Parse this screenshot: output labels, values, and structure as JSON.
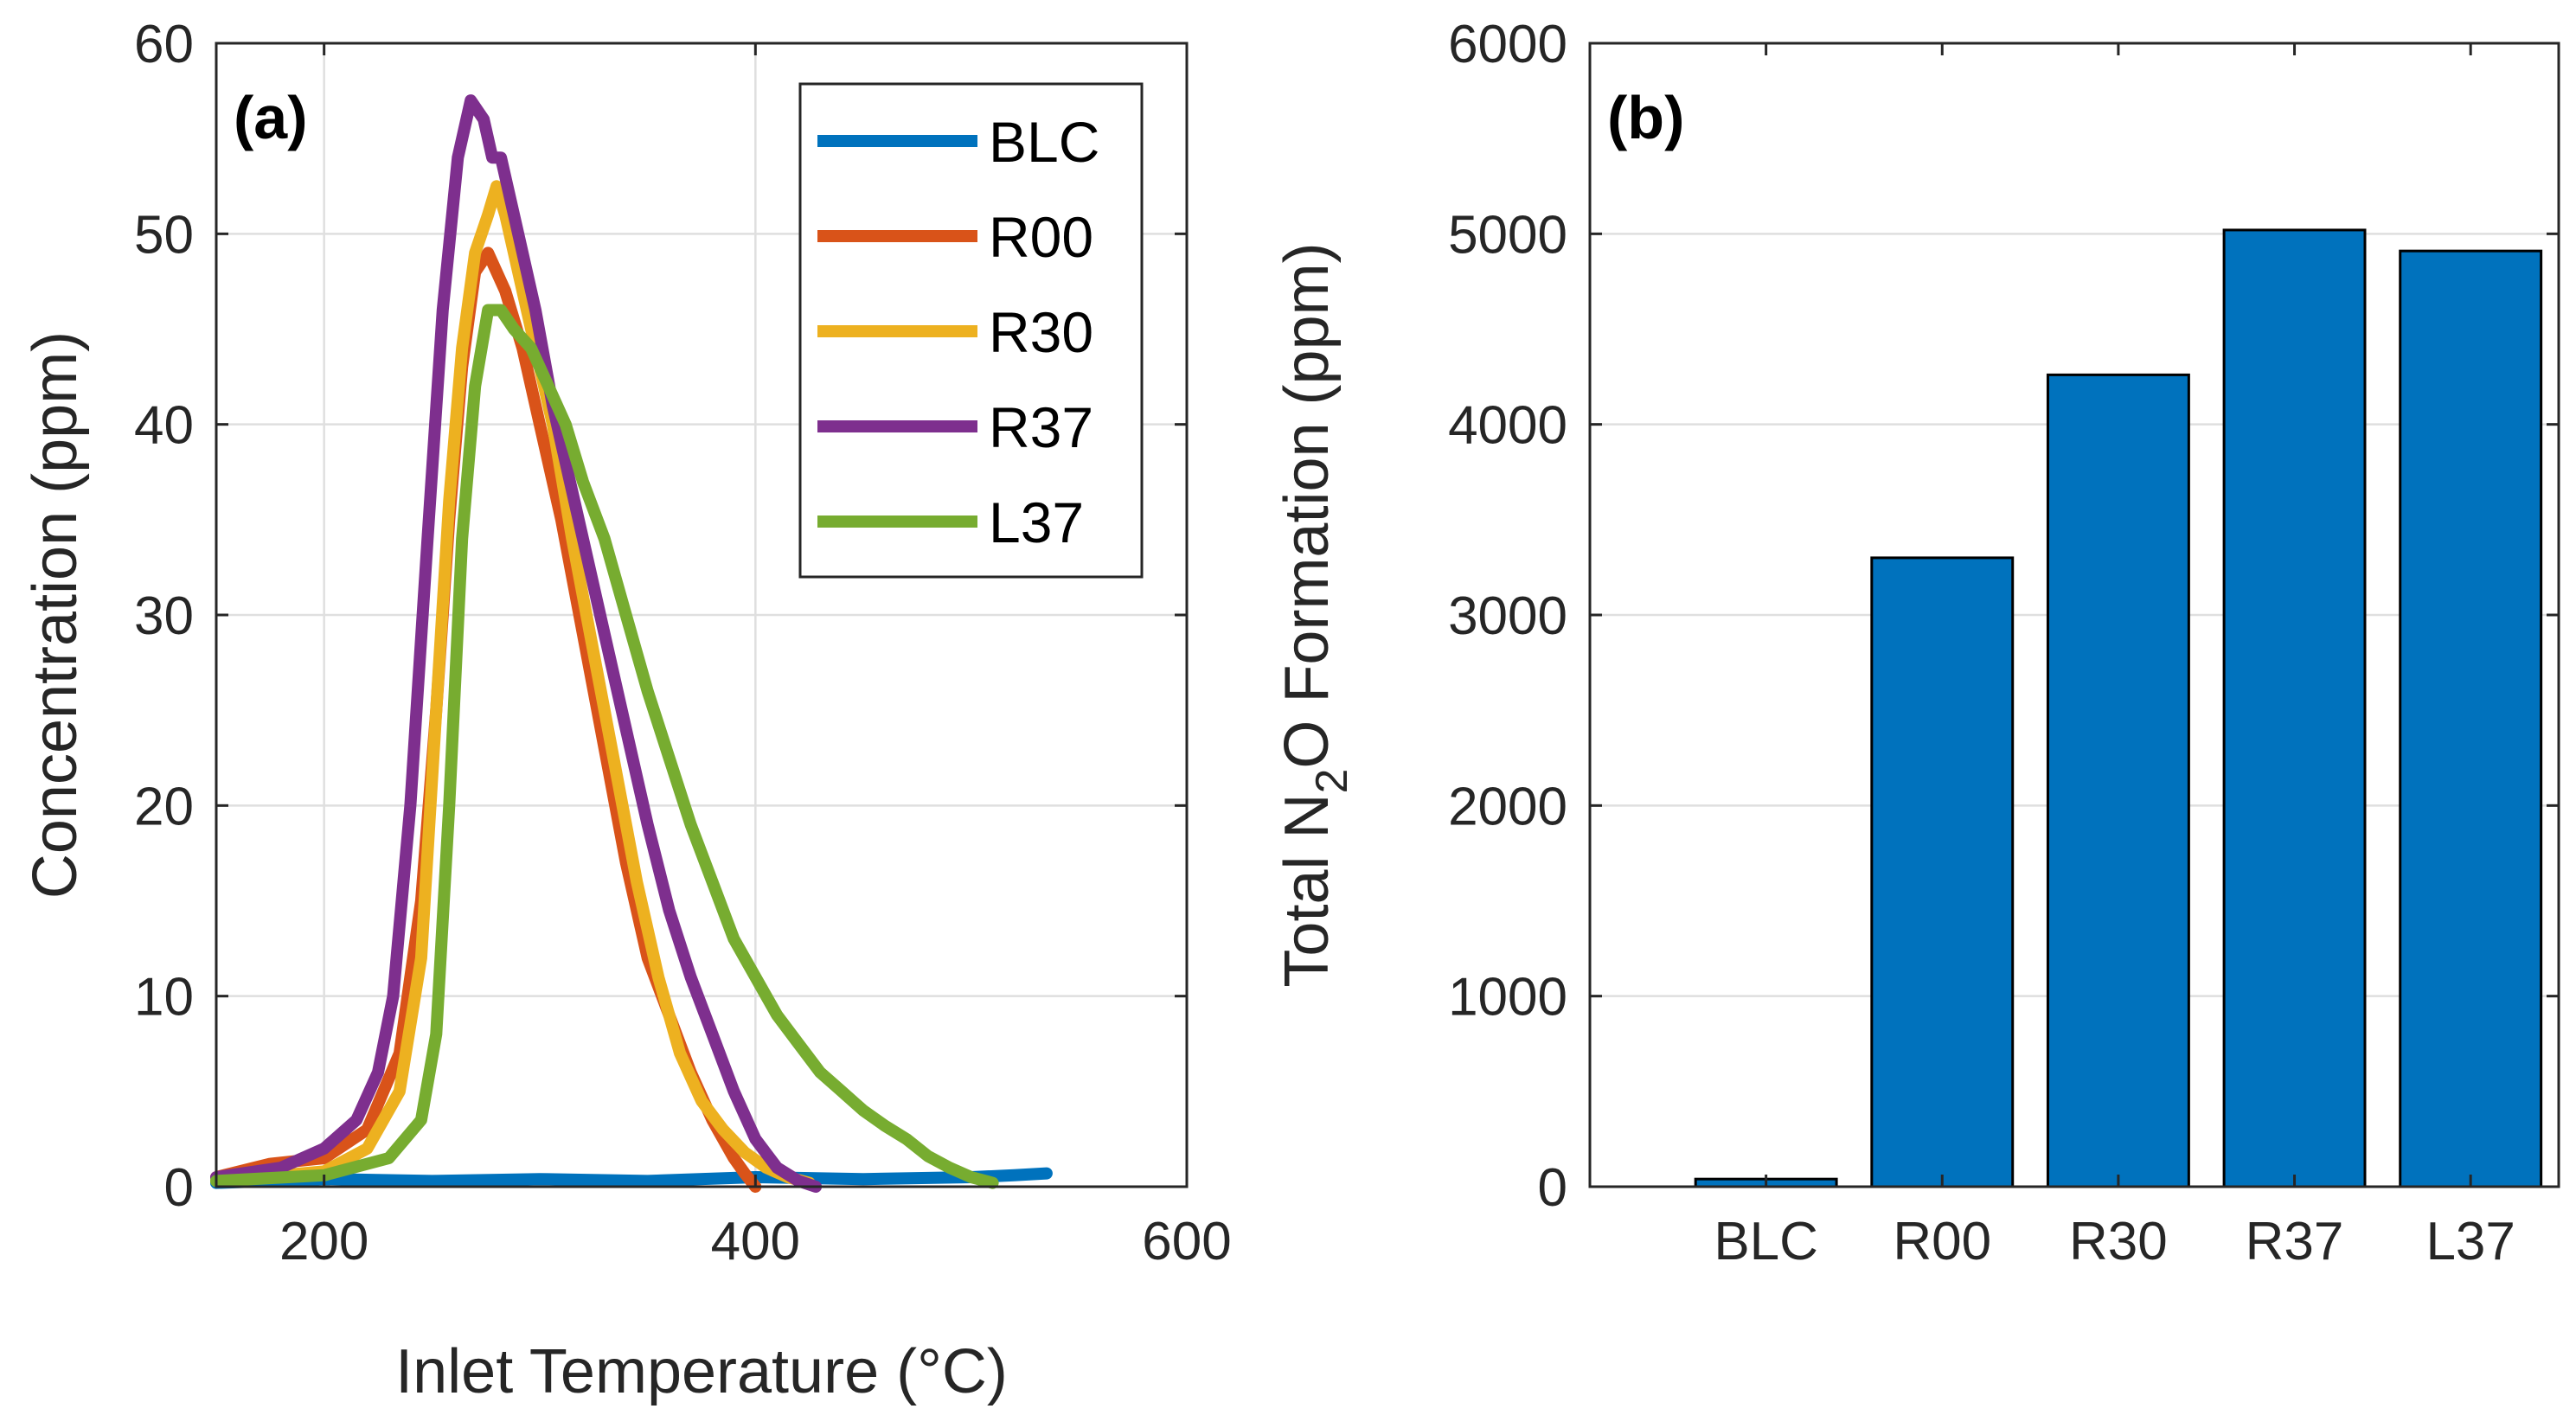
{
  "chart_data": [
    {
      "panel": "(a)",
      "type": "line",
      "xlabel": "Inlet Temperature (°C)",
      "ylabel": "Concentration (ppm)",
      "xlim": [
        150,
        600
      ],
      "ylim": [
        0,
        60
      ],
      "xticks": [
        200,
        400,
        600
      ],
      "yticks": [
        0,
        10,
        20,
        30,
        40,
        50,
        60
      ],
      "grid": true,
      "legend": "top-right",
      "series": [
        {
          "name": "BLC",
          "color": "#0072BD",
          "x": [
            150,
            200,
            250,
            300,
            350,
            400,
            450,
            500,
            520,
            535
          ],
          "y": [
            0.2,
            0.4,
            0.3,
            0.4,
            0.3,
            0.5,
            0.4,
            0.5,
            0.6,
            0.7
          ]
        },
        {
          "name": "R00",
          "color": "#D95319",
          "x": [
            150,
            175,
            200,
            220,
            235,
            245,
            252,
            258,
            264,
            270,
            276,
            284,
            292,
            300,
            310,
            320,
            330,
            340,
            350,
            360,
            370,
            380,
            390,
            395,
            400
          ],
          "y": [
            0.5,
            1.2,
            1.5,
            3,
            7,
            15,
            25,
            35,
            43,
            48,
            49,
            47,
            44,
            40,
            35,
            29,
            23,
            17,
            12,
            9,
            6,
            3.5,
            1.5,
            0.7,
            0
          ]
        },
        {
          "name": "R30",
          "color": "#EDB120",
          "x": [
            150,
            200,
            220,
            235,
            245,
            252,
            258,
            264,
            270,
            276,
            280,
            284,
            290,
            298,
            306,
            315,
            325,
            335,
            345,
            355,
            365,
            375,
            385,
            395,
            405,
            415,
            425
          ],
          "y": [
            0.3,
            0.8,
            2,
            5,
            12,
            25,
            36,
            44,
            49,
            51,
            52.5,
            51,
            48,
            44,
            40,
            34,
            28,
            22,
            16,
            11,
            7,
            4.5,
            3,
            1.8,
            1,
            0.5,
            0.2
          ]
        },
        {
          "name": "R37",
          "color": "#7E2F8E",
          "x": [
            150,
            180,
            200,
            215,
            225,
            232,
            240,
            248,
            255,
            262,
            268,
            274,
            278,
            282,
            290,
            298,
            306,
            314,
            322,
            330,
            340,
            350,
            360,
            370,
            380,
            390,
            400,
            410,
            420,
            428
          ],
          "y": [
            0.5,
            1,
            2,
            3.5,
            6,
            10,
            20,
            34,
            46,
            54,
            57,
            56,
            54,
            54,
            50,
            46,
            41,
            37,
            33,
            29,
            24,
            19,
            14.5,
            11,
            8,
            5,
            2.5,
            1,
            0.3,
            0
          ]
        },
        {
          "name": "L37",
          "color": "#77AC30",
          "x": [
            150,
            200,
            230,
            245,
            252,
            258,
            264,
            270,
            276,
            282,
            288,
            296,
            304,
            312,
            320,
            330,
            340,
            350,
            360,
            370,
            380,
            390,
            400,
            410,
            420,
            430,
            440,
            450,
            460,
            470,
            480,
            490,
            500,
            510
          ],
          "y": [
            0.3,
            0.6,
            1.5,
            3.5,
            8,
            20,
            34,
            42,
            46,
            46,
            45,
            44,
            42,
            40,
            37,
            34,
            30,
            26,
            22.5,
            19,
            16,
            13,
            11,
            9,
            7.5,
            6,
            5,
            4,
            3.2,
            2.5,
            1.6,
            1,
            0.5,
            0.2
          ]
        }
      ]
    },
    {
      "panel": "(b)",
      "type": "bar",
      "categories": [
        "BLC",
        "R00",
        "R30",
        "R37",
        "L37"
      ],
      "values": [
        40,
        3300,
        4260,
        5020,
        4910
      ],
      "color": "#0072BD",
      "ylabel_parts": {
        "before": "Total N",
        "subscript": "2",
        "after": "O Formation (ppm)"
      },
      "xlim": [
        -0.5,
        5
      ],
      "ylim": [
        0,
        6000
      ],
      "yticks": [
        0,
        1000,
        2000,
        3000,
        4000,
        5000,
        6000
      ],
      "grid": true
    }
  ]
}
